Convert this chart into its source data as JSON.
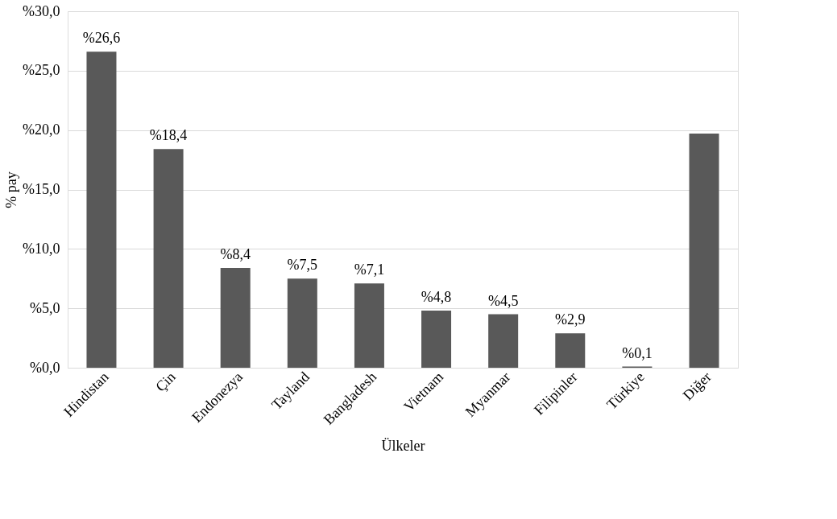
{
  "chart_data": {
    "type": "bar",
    "xlabel": "Ülkeler",
    "ylabel": "% pay",
    "categories": [
      "Hindistan",
      "Çin",
      "Endonezya",
      "Tayland",
      "Bangladesh",
      "Vietnam",
      "Myanmar",
      "Filipinler",
      "Türkiye",
      "Diğer"
    ],
    "values": [
      26.6,
      18.4,
      8.4,
      7.5,
      7.1,
      4.8,
      4.5,
      2.9,
      0.1,
      19.7
    ],
    "value_labels": [
      "%26,6",
      "%18,4",
      "%8,4",
      "%7,5",
      "%7,1",
      "%4,8",
      "%4,5",
      "%2,9",
      "%0,1",
      null
    ],
    "color": "#595959",
    "ylim": [
      0,
      30
    ],
    "yticks": [
      {
        "value": 0,
        "label": "%0,0"
      },
      {
        "value": 5,
        "label": "%5,0"
      },
      {
        "value": 10,
        "label": "%10,0"
      },
      {
        "value": 15,
        "label": "%15,0"
      },
      {
        "value": 20,
        "label": "%20,0"
      },
      {
        "value": 25,
        "label": "%25,0"
      },
      {
        "value": 30,
        "label": "%30,0"
      }
    ],
    "grid": "y"
  }
}
